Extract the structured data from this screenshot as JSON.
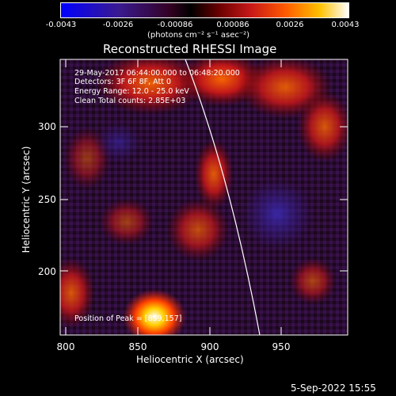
{
  "colorbar": {
    "tick_labels": [
      "-0.0043",
      "-0.0026",
      "-0.00086",
      "0.00086",
      "0.0026",
      "0.0043"
    ],
    "units_label": "(photons cm⁻² s⁻¹ asec⁻²)",
    "stops": [
      "#0000ff",
      "#3a1a90",
      "#330022",
      "#000000",
      "#6a0000",
      "#c81818",
      "#ff5a00",
      "#ffc000",
      "#ffffff"
    ]
  },
  "plot": {
    "title": "Reconstructed RHESSI Image",
    "info_lines": [
      "29-May-2017 06:44:00.000 to 06:48:20.000",
      "Detectors: 3F 6F 8F, Att 0",
      "Energy Range: 12.0 - 25.0 keV",
      "Clean     Total counts: 2.85E+03"
    ],
    "peak_label": "Position of Peak = [859,157]",
    "xlabel": "Heliocentric X (arcsec)",
    "ylabel": "Heliocentric Y (arcsec)",
    "x_ticks": [
      "800",
      "850",
      "900",
      "950"
    ],
    "y_ticks": [
      "200",
      "250",
      "300"
    ],
    "limb_color": "#ffffff"
  },
  "timestamp": "5-Sep-2022 15:55"
}
